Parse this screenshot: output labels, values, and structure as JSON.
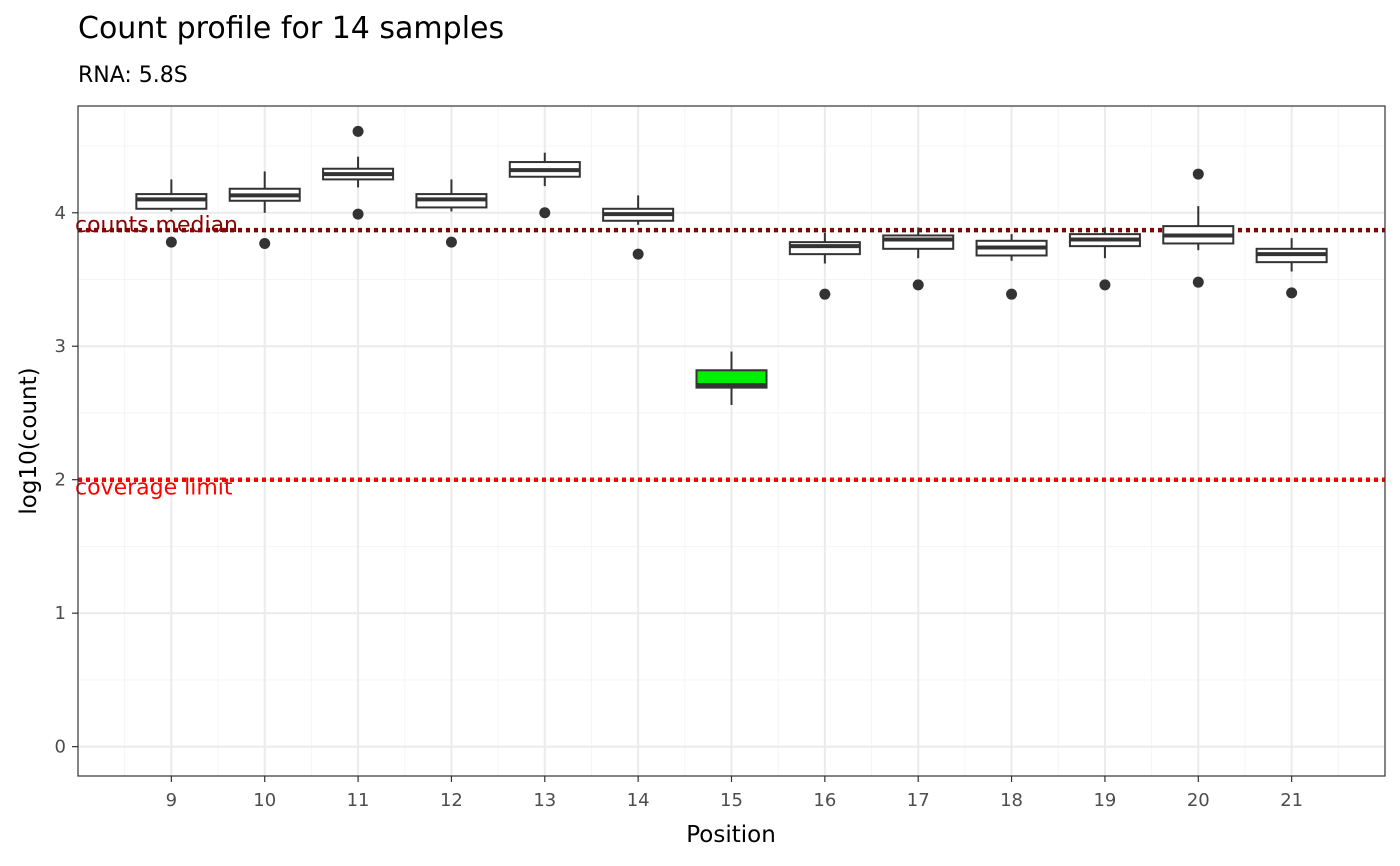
{
  "chart_data": {
    "type": "boxplot",
    "title": "Count profile for 14 samples",
    "subtitle": "RNA: 5.8S",
    "xlabel": "Position",
    "ylabel": "log10(count)",
    "ylim": [
      -0.22,
      4.8
    ],
    "yticks": [
      0,
      1,
      2,
      3,
      4
    ],
    "grid": true,
    "categories": [
      "9",
      "10",
      "11",
      "12",
      "13",
      "14",
      "15",
      "16",
      "17",
      "18",
      "19",
      "20",
      "21"
    ],
    "boxes": [
      {
        "x": "9",
        "whisker_low": 4.01,
        "q1": 4.03,
        "median": 4.1,
        "q3": 4.14,
        "whisker_high": 4.25,
        "outliers": [
          3.78
        ],
        "fill": "#ffffff"
      },
      {
        "x": "10",
        "whisker_low": 4.0,
        "q1": 4.09,
        "median": 4.13,
        "q3": 4.18,
        "whisker_high": 4.31,
        "outliers": [
          3.77
        ],
        "fill": "#ffffff"
      },
      {
        "x": "11",
        "whisker_low": 4.19,
        "q1": 4.25,
        "median": 4.29,
        "q3": 4.33,
        "whisker_high": 4.42,
        "outliers": [
          3.99,
          4.61
        ],
        "fill": "#ffffff"
      },
      {
        "x": "12",
        "whisker_low": 4.01,
        "q1": 4.04,
        "median": 4.1,
        "q3": 4.14,
        "whisker_high": 4.25,
        "outliers": [
          3.78
        ],
        "fill": "#ffffff"
      },
      {
        "x": "13",
        "whisker_low": 4.2,
        "q1": 4.27,
        "median": 4.32,
        "q3": 4.38,
        "whisker_high": 4.45,
        "outliers": [
          4.0
        ],
        "fill": "#ffffff"
      },
      {
        "x": "14",
        "whisker_low": 3.91,
        "q1": 3.94,
        "median": 3.99,
        "q3": 4.03,
        "whisker_high": 4.13,
        "outliers": [
          3.69
        ],
        "fill": "#ffffff"
      },
      {
        "x": "15",
        "whisker_low": 2.56,
        "q1": 2.69,
        "median": 2.71,
        "q3": 2.82,
        "whisker_high": 2.96,
        "outliers": [],
        "fill": "#00ee00"
      },
      {
        "x": "16",
        "whisker_low": 3.62,
        "q1": 3.69,
        "median": 3.75,
        "q3": 3.78,
        "whisker_high": 3.85,
        "outliers": [
          3.39
        ],
        "fill": "#ffffff"
      },
      {
        "x": "17",
        "whisker_low": 3.66,
        "q1": 3.73,
        "median": 3.8,
        "q3": 3.83,
        "whisker_high": 3.89,
        "outliers": [
          3.46
        ],
        "fill": "#ffffff"
      },
      {
        "x": "18",
        "whisker_low": 3.64,
        "q1": 3.68,
        "median": 3.74,
        "q3": 3.79,
        "whisker_high": 3.84,
        "outliers": [
          3.39
        ],
        "fill": "#ffffff"
      },
      {
        "x": "19",
        "whisker_low": 3.66,
        "q1": 3.75,
        "median": 3.8,
        "q3": 3.84,
        "whisker_high": 3.89,
        "outliers": [
          3.46
        ],
        "fill": "#ffffff"
      },
      {
        "x": "20",
        "whisker_low": 3.72,
        "q1": 3.77,
        "median": 3.83,
        "q3": 3.9,
        "whisker_high": 4.05,
        "outliers": [
          3.48,
          4.29
        ],
        "fill": "#ffffff"
      },
      {
        "x": "21",
        "whisker_low": 3.56,
        "q1": 3.63,
        "median": 3.69,
        "q3": 3.73,
        "whisker_high": 3.81,
        "outliers": [
          3.4
        ],
        "fill": "#ffffff"
      }
    ],
    "reference_lines": [
      {
        "label": "counts median",
        "y": 3.87,
        "color": "#8b0000",
        "style": "dotted"
      },
      {
        "label": "coverage limit",
        "y": 2.0,
        "color": "#ff0000",
        "style": "dotted"
      }
    ],
    "colors": {
      "box_stroke": "#333333",
      "outlier": "#333333",
      "grid_major": "#ebebeb",
      "grid_minor": "#f5f5f5",
      "panel_border": "#333333",
      "tick_text": "#4d4d4d"
    }
  }
}
